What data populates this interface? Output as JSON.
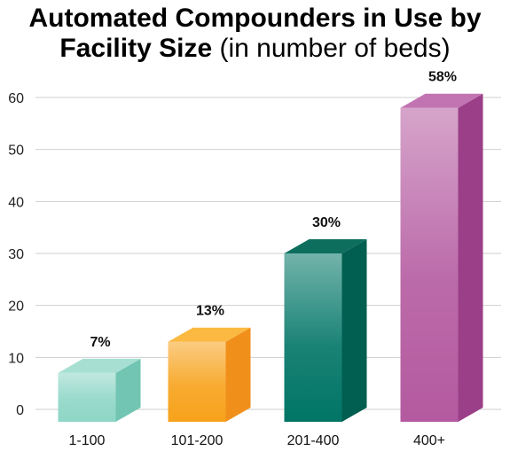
{
  "title_line1": "Automated Compounders in Use by",
  "title_line2_bold": "Facility Size",
  "title_line2_rest": " (in number of beds)",
  "chart_data": {
    "type": "bar",
    "title": "Automated Compounders in Use by Facility Size (in number of beds)",
    "categories": [
      "1-100",
      "101-200",
      "201-400",
      "400+"
    ],
    "values": [
      7,
      13,
      30,
      58
    ],
    "data_labels": [
      "7%",
      "13%",
      "30%",
      "58%"
    ],
    "yticks": [
      0,
      10,
      20,
      30,
      40,
      50,
      60
    ],
    "ylim": [
      0,
      60
    ],
    "grid": true,
    "colors": {
      "front": [
        "#8ed6c6",
        "#f7a21b",
        "#007566",
        "#b45aa0"
      ],
      "side": [
        "#72c5b3",
        "#f18f1b",
        "#005f50",
        "#9a3f88"
      ],
      "top": [
        "#a7e0d3",
        "#fbb941",
        "#0d6e5e",
        "#c274b2"
      ],
      "grid": "#cfcfcf"
    }
  }
}
